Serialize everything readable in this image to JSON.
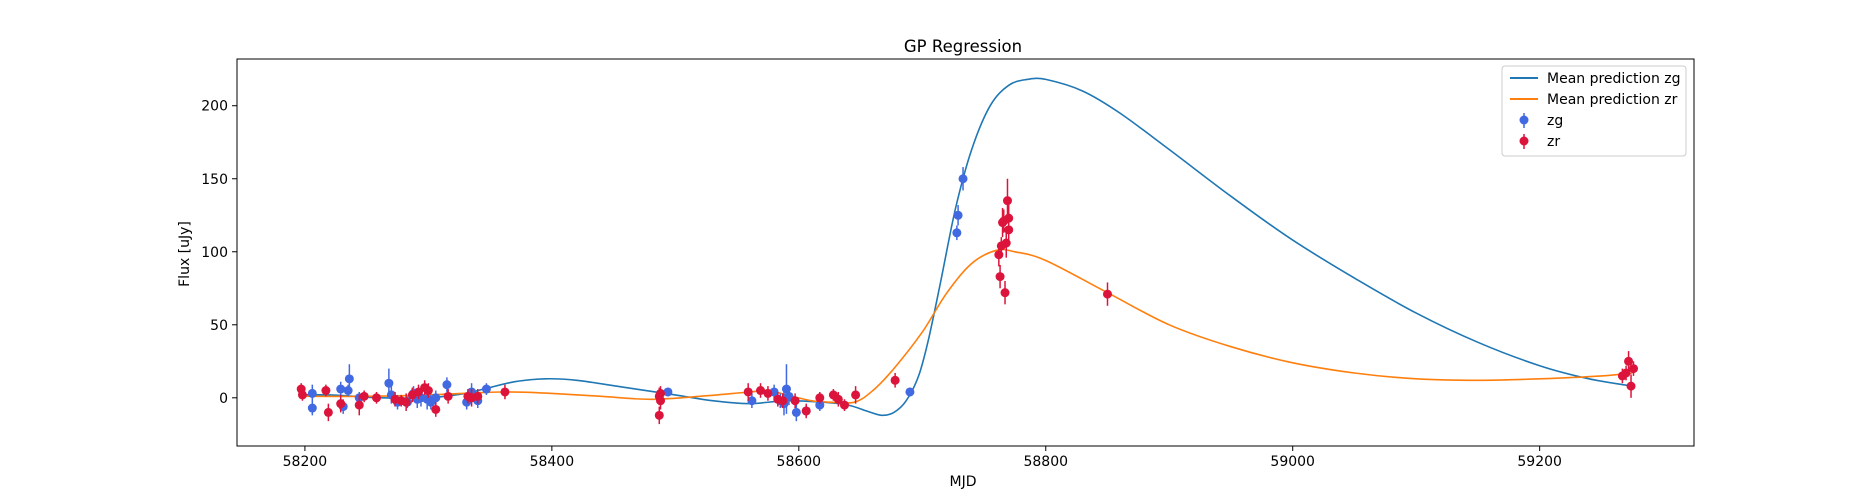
{
  "chart_data": {
    "type": "scatter",
    "title": "GP Regression",
    "xlabel": "MJD",
    "ylabel": "Flux [uJy]",
    "xlim": [
      58145,
      59325
    ],
    "ylim": [
      -33,
      232
    ],
    "xticks": [
      58200,
      58400,
      58600,
      58800,
      59000,
      59200
    ],
    "yticks": [
      0,
      50,
      100,
      150,
      200
    ],
    "grid": false,
    "legend_position": "top-right",
    "colors": {
      "zg_line": "#1f77b4",
      "zr_line": "#ff7f0e",
      "zg_points": "#4169e1",
      "zr_points": "#dc143c"
    },
    "lines": [
      {
        "name": "Mean prediction zg",
        "color": "#1f77b4",
        "points": [
          [
            58196,
            2
          ],
          [
            58220,
            2
          ],
          [
            58240,
            1
          ],
          [
            58260,
            0
          ],
          [
            58300,
            0
          ],
          [
            58330,
            3
          ],
          [
            58345,
            6
          ],
          [
            58370,
            11
          ],
          [
            58395,
            13
          ],
          [
            58420,
            12
          ],
          [
            58460,
            7
          ],
          [
            58500,
            2
          ],
          [
            58530,
            -2
          ],
          [
            58560,
            -4
          ],
          [
            58590,
            -2
          ],
          [
            58620,
            -3
          ],
          [
            58640,
            -5
          ],
          [
            58655,
            -9
          ],
          [
            58667,
            -12
          ],
          [
            58677,
            -10
          ],
          [
            58687,
            -2
          ],
          [
            58697,
            15
          ],
          [
            58705,
            40
          ],
          [
            58715,
            80
          ],
          [
            58727,
            130
          ],
          [
            58740,
            170
          ],
          [
            58755,
            200
          ],
          [
            58770,
            214
          ],
          [
            58785,
            218
          ],
          [
            58800,
            218
          ],
          [
            58830,
            210
          ],
          [
            58860,
            195
          ],
          [
            58900,
            170
          ],
          [
            58950,
            138
          ],
          [
            59000,
            108
          ],
          [
            59050,
            82
          ],
          [
            59100,
            58
          ],
          [
            59150,
            38
          ],
          [
            59200,
            22
          ],
          [
            59240,
            13
          ],
          [
            59275,
            8
          ]
        ]
      },
      {
        "name": "Mean prediction zr",
        "color": "#ff7f0e",
        "points": [
          [
            58196,
            1
          ],
          [
            58250,
            1
          ],
          [
            58300,
            2
          ],
          [
            58360,
            4
          ],
          [
            58400,
            3
          ],
          [
            58440,
            1
          ],
          [
            58480,
            -1
          ],
          [
            58520,
            1
          ],
          [
            58560,
            4
          ],
          [
            58575,
            5
          ],
          [
            58590,
            2
          ],
          [
            58610,
            -2
          ],
          [
            58625,
            -3
          ],
          [
            58645,
            -3
          ],
          [
            58660,
            5
          ],
          [
            58677,
            20
          ],
          [
            58700,
            45
          ],
          [
            58720,
            72
          ],
          [
            58740,
            92
          ],
          [
            58760,
            101
          ],
          [
            58775,
            100
          ],
          [
            58800,
            94
          ],
          [
            58850,
            72
          ],
          [
            58900,
            50
          ],
          [
            58950,
            35
          ],
          [
            59000,
            24
          ],
          [
            59050,
            17
          ],
          [
            59100,
            13
          ],
          [
            59150,
            12
          ],
          [
            59200,
            13
          ],
          [
            59250,
            15
          ],
          [
            59275,
            17
          ]
        ]
      }
    ],
    "series": [
      {
        "name": "zg",
        "color": "#4169e1",
        "points": [
          [
            58206,
            3,
            6
          ],
          [
            58206,
            -7,
            5
          ],
          [
            58229,
            6,
            5
          ],
          [
            58231,
            -6,
            5
          ],
          [
            58235,
            5,
            4
          ],
          [
            58236,
            13,
            10
          ],
          [
            58244,
            0,
            4
          ],
          [
            58268,
            10,
            10
          ],
          [
            58270,
            2,
            6
          ],
          [
            58275,
            -3,
            5
          ],
          [
            58283,
            -3,
            4
          ],
          [
            58288,
            3,
            5
          ],
          [
            58291,
            -1,
            6
          ],
          [
            58294,
            0,
            6
          ],
          [
            58299,
            -1,
            7
          ],
          [
            58302,
            -3,
            5
          ],
          [
            58306,
            0,
            5
          ],
          [
            58315,
            9,
            5
          ],
          [
            58331,
            -3,
            5
          ],
          [
            58335,
            4,
            6
          ],
          [
            58340,
            -2,
            5
          ],
          [
            58347,
            6,
            4
          ],
          [
            58494,
            4,
            3
          ],
          [
            58562,
            -2,
            5
          ],
          [
            58580,
            4,
            5
          ],
          [
            58585,
            -2,
            5
          ],
          [
            58588,
            -4,
            8
          ],
          [
            58590,
            6,
            17
          ],
          [
            58592,
            1,
            6
          ],
          [
            58598,
            -10,
            6
          ],
          [
            58606,
            -9,
            4
          ],
          [
            58617,
            -5,
            4
          ],
          [
            58690,
            4,
            3
          ],
          [
            58728,
            113,
            5
          ],
          [
            58729,
            125,
            7
          ],
          [
            58733,
            150,
            8
          ]
        ]
      },
      {
        "name": "zr",
        "color": "#dc143c",
        "points": [
          [
            58197,
            6,
            4
          ],
          [
            58198,
            2,
            4
          ],
          [
            58217,
            5,
            4
          ],
          [
            58219,
            -10,
            6
          ],
          [
            58229,
            -4,
            6
          ],
          [
            58244,
            -5,
            7
          ],
          [
            58248,
            1,
            4
          ],
          [
            58258,
            0,
            4
          ],
          [
            58273,
            -1,
            5
          ],
          [
            58278,
            -2,
            4
          ],
          [
            58282,
            -3,
            6
          ],
          [
            58287,
            2,
            5
          ],
          [
            58292,
            4,
            5
          ],
          [
            58297,
            7,
            5
          ],
          [
            58300,
            5,
            5
          ],
          [
            58306,
            -8,
            5
          ],
          [
            58316,
            1,
            5
          ],
          [
            58332,
            1,
            5
          ],
          [
            58335,
            0,
            6
          ],
          [
            58340,
            1,
            5
          ],
          [
            58362,
            4,
            5
          ],
          [
            58487,
            -12,
            6
          ],
          [
            58487,
            1,
            6
          ],
          [
            58488,
            -2,
            6
          ],
          [
            58488,
            3,
            5
          ],
          [
            58559,
            4,
            6
          ],
          [
            58569,
            5,
            5
          ],
          [
            58575,
            3,
            5
          ],
          [
            58583,
            -1,
            5
          ],
          [
            58587,
            -2,
            5
          ],
          [
            58597,
            -2,
            5
          ],
          [
            58606,
            -9,
            5
          ],
          [
            58617,
            0,
            4
          ],
          [
            58628,
            2,
            4
          ],
          [
            58632,
            -1,
            5
          ],
          [
            58637,
            -5,
            4
          ],
          [
            58646,
            2,
            6
          ],
          [
            58678,
            12,
            5
          ],
          [
            58762,
            98,
            8
          ],
          [
            58763,
            83,
            8
          ],
          [
            58764,
            104,
            6
          ],
          [
            58765,
            120,
            10
          ],
          [
            58766,
            121,
            8
          ],
          [
            58767,
            72,
            8
          ],
          [
            58768,
            106,
            10
          ],
          [
            58769,
            135,
            15
          ],
          [
            58770,
            115,
            8
          ],
          [
            58770,
            123,
            10
          ],
          [
            58850,
            71,
            8
          ],
          [
            59267,
            15,
            5
          ],
          [
            59270,
            17,
            5
          ],
          [
            59272,
            25,
            7
          ],
          [
            59274,
            8,
            8
          ],
          [
            59276,
            20,
            5
          ]
        ]
      }
    ]
  }
}
